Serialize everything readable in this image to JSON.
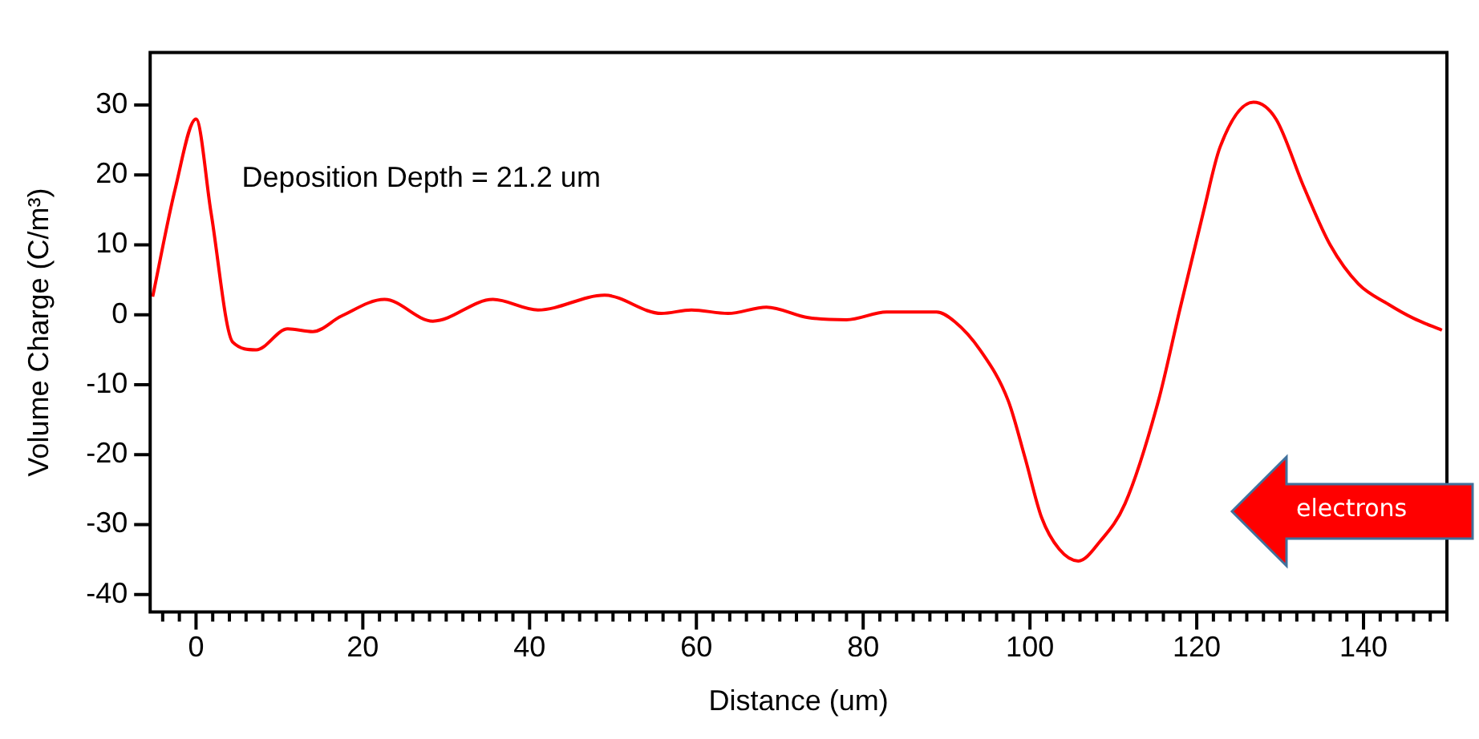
{
  "chart_data": {
    "type": "line",
    "xlabel": "Distance (um)",
    "ylabel": "Volume Charge (C/m³)",
    "annotations": [
      "Deposition Depth = 21.2 um",
      "electrons"
    ],
    "series": [
      {
        "color": "#ff0000",
        "x": [
          -5.2,
          -2.5,
          0,
          1.8,
          4.4,
          7.2,
          11,
          14,
          17.4,
          22.6,
          28.4,
          35.6,
          41,
          49,
          55.8,
          59.4,
          63.8,
          68.4,
          73.4,
          78,
          82.8,
          88.8,
          91,
          94,
          97.4,
          99.4,
          101.4,
          103.5,
          105.8,
          108.4,
          111.4,
          115.4,
          118,
          120.8,
          122.8,
          126.8,
          129.5,
          132.8,
          136,
          139.4,
          143,
          146,
          149.4
        ],
        "values": [
          2.6,
          18,
          28,
          14.6,
          -3.9,
          -5,
          -2,
          -2.4,
          -0.2,
          2.2,
          -0.9,
          2.2,
          0.7,
          2.8,
          0.2,
          0.7,
          0.2,
          1.1,
          -0.4,
          -0.7,
          0.4,
          0.4,
          -1,
          -5,
          -12.3,
          -20.4,
          -29,
          -33.5,
          -35.2,
          -32.4,
          -27,
          -12.3,
          0.9,
          14.7,
          24,
          30.4,
          28,
          18.4,
          10,
          4.4,
          1.5,
          -0.5,
          -2.2
        ]
      }
    ],
    "xlim": [
      -5.5,
      150
    ],
    "ylim": [
      -42.5,
      37.5
    ],
    "xticks": [
      {
        "value": -4,
        "label": null
      },
      {
        "value": -2,
        "label": null
      },
      0,
      {
        "value": 2,
        "label": null
      },
      {
        "value": 4,
        "label": null
      },
      {
        "value": 6,
        "label": null
      },
      {
        "value": 8,
        "label": null
      },
      {
        "value": 10,
        "label": null
      },
      {
        "value": 12,
        "label": null
      },
      {
        "value": 14,
        "label": null
      },
      {
        "value": 16,
        "label": null
      },
      {
        "value": 18,
        "label": null
      },
      20,
      {
        "value": 22,
        "label": null
      },
      {
        "value": 24,
        "label": null
      },
      {
        "value": 26,
        "label": null
      },
      {
        "value": 28,
        "label": null
      },
      {
        "value": 30,
        "label": null
      },
      {
        "value": 32,
        "label": null
      },
      {
        "value": 34,
        "label": null
      },
      {
        "value": 36,
        "label": null
      },
      {
        "value": 38,
        "label": null
      },
      40,
      {
        "value": 42,
        "label": null
      },
      {
        "value": 44,
        "label": null
      },
      {
        "value": 46,
        "label": null
      },
      {
        "value": 48,
        "label": null
      },
      {
        "value": 50,
        "label": null
      },
      {
        "value": 52,
        "label": null
      },
      {
        "value": 54,
        "label": null
      },
      {
        "value": 56,
        "label": null
      },
      {
        "value": 58,
        "label": null
      },
      60,
      {
        "value": 62,
        "label": null
      },
      {
        "value": 64,
        "label": null
      },
      {
        "value": 66,
        "label": null
      },
      {
        "value": 68,
        "label": null
      },
      {
        "value": 70,
        "label": null
      },
      {
        "value": 72,
        "label": null
      },
      {
        "value": 74,
        "label": null
      },
      {
        "value": 76,
        "label": null
      },
      {
        "value": 78,
        "label": null
      },
      80,
      {
        "value": 82,
        "label": null
      },
      {
        "value": 84,
        "label": null
      },
      {
        "value": 86,
        "label": null
      },
      {
        "value": 88,
        "label": null
      },
      {
        "value": 90,
        "label": null
      },
      {
        "value": 92,
        "label": null
      },
      {
        "value": 94,
        "label": null
      },
      {
        "value": 96,
        "label": null
      },
      {
        "value": 98,
        "label": null
      },
      100,
      {
        "value": 102,
        "label": null
      },
      {
        "value": 104,
        "label": null
      },
      {
        "value": 106,
        "label": null
      },
      {
        "value": 108,
        "label": null
      },
      {
        "value": 110,
        "label": null
      },
      {
        "value": 112,
        "label": null
      },
      {
        "value": 114,
        "label": null
      },
      {
        "value": 116,
        "label": null
      },
      {
        "value": 118,
        "label": null
      },
      120,
      {
        "value": 122,
        "label": null
      },
      {
        "value": 124,
        "label": null
      },
      {
        "value": 126,
        "label": null
      },
      {
        "value": 128,
        "label": null
      },
      {
        "value": 130,
        "label": null
      },
      {
        "value": 132,
        "label": null
      },
      {
        "value": 134,
        "label": null
      },
      {
        "value": 136,
        "label": null
      },
      {
        "value": 138,
        "label": null
      },
      140,
      {
        "value": 142,
        "label": null
      },
      {
        "value": 144,
        "label": null
      },
      {
        "value": 146,
        "label": null
      },
      {
        "value": 148,
        "label": null
      },
      {
        "value": 150,
        "label": null
      }
    ],
    "yticks": [
      -40,
      -30,
      -20,
      -10,
      0,
      10,
      20,
      30
    ],
    "grid": false,
    "legend": false,
    "marker": "none",
    "line_style": "solid"
  }
}
